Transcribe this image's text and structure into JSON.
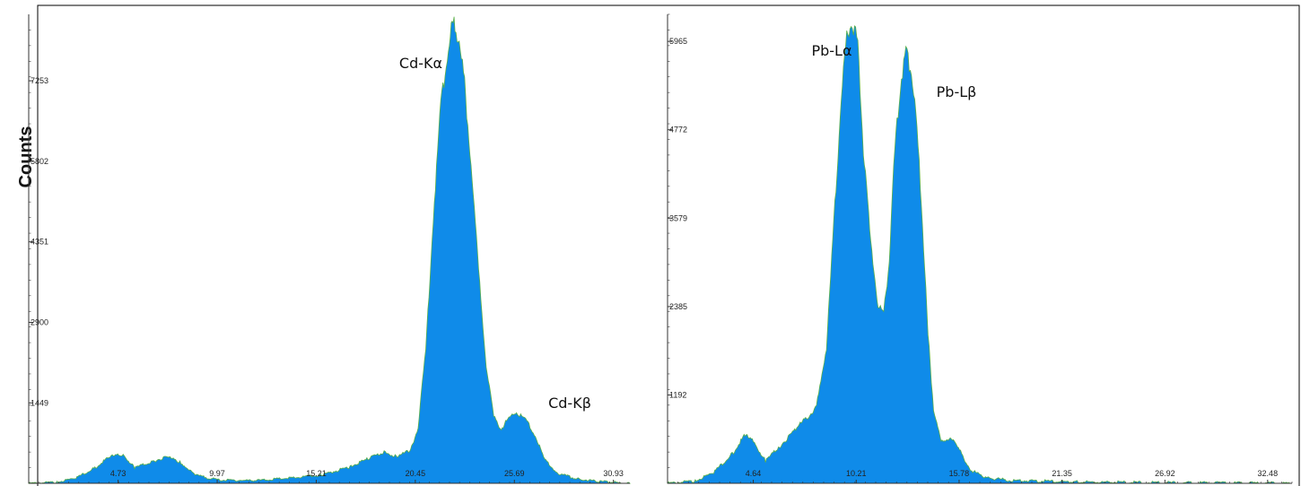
{
  "ylabel": "Counts",
  "colors": {
    "fill": "#0F8BE9",
    "edge": "#5BB04A",
    "axis": "#333333",
    "frame": "#000000"
  },
  "chart_data": [
    {
      "type": "area",
      "name": "cd",
      "xlim": [
        0,
        31.8
      ],
      "ylim": [
        0,
        8450
      ],
      "xticks": [
        "4.73",
        "9.97",
        "15.21",
        "20.45",
        "25.69",
        "30.93"
      ],
      "yticks": [
        "1449",
        "2900",
        "4351",
        "5802",
        "7253"
      ],
      "peaks": [
        {
          "label": "Cd-Kα",
          "x": 22.4,
          "y": 8300
        },
        {
          "label": "Cd-Kβ",
          "x": 25.6,
          "y": 1350
        }
      ],
      "x": [
        0,
        1.5,
        2.5,
        3.5,
        4.3,
        5.0,
        5.6,
        6.6,
        7.3,
        8.0,
        8.8,
        10,
        12,
        14,
        15.5,
        17,
        18,
        18.8,
        19.5,
        20.2,
        20.6,
        21.0,
        21.4,
        21.8,
        22.2,
        22.4,
        22.6,
        23.0,
        23.4,
        23.8,
        24.2,
        24.6,
        25.0,
        25.4,
        25.8,
        26.3,
        26.8,
        27.3,
        28.0,
        29,
        30,
        31,
        31.8
      ],
      "y": [
        0,
        20,
        100,
        280,
        480,
        520,
        280,
        400,
        480,
        380,
        150,
        60,
        50,
        100,
        150,
        300,
        450,
        560,
        480,
        600,
        1000,
        2400,
        4800,
        6800,
        7900,
        8300,
        8200,
        7400,
        5800,
        3800,
        2100,
        1200,
        980,
        1180,
        1280,
        1150,
        850,
        420,
        180,
        80,
        40,
        20,
        0
      ]
    },
    {
      "type": "area",
      "name": "pb",
      "xlim": [
        0,
        33.8
      ],
      "ylim": [
        0,
        6330
      ],
      "xticks": [
        "4.64",
        "10.21",
        "15.78",
        "21.35",
        "26.92",
        "32.48"
      ],
      "yticks": [
        "1192",
        "2385",
        "3579",
        "4772",
        "5965"
      ],
      "peaks": [
        {
          "label": "Pb-Lα",
          "x": 10.0,
          "y": 6250
        },
        {
          "label": "Pb-Lβ",
          "x": 12.9,
          "y": 5800
        }
      ],
      "x": [
        0,
        1.5,
        2.5,
        3.5,
        4.2,
        4.7,
        5.3,
        6.0,
        7.0,
        8.0,
        8.6,
        9.0,
        9.4,
        9.7,
        10.0,
        10.3,
        10.6,
        11.0,
        11.4,
        11.7,
        12.0,
        12.3,
        12.6,
        12.9,
        13.2,
        13.5,
        13.8,
        14.1,
        14.4,
        14.8,
        15.3,
        15.8,
        16.4,
        17.2,
        18.5,
        22,
        26,
        30,
        33.8
      ],
      "y": [
        0,
        30,
        150,
        400,
        650,
        550,
        300,
        480,
        750,
        1000,
        1800,
        3500,
        5200,
        6000,
        6250,
        5900,
        4500,
        3200,
        2400,
        2300,
        3000,
        4500,
        5400,
        5800,
        5600,
        4800,
        3500,
        2000,
        1000,
        550,
        620,
        450,
        180,
        80,
        40,
        20,
        10,
        5,
        0
      ]
    }
  ]
}
